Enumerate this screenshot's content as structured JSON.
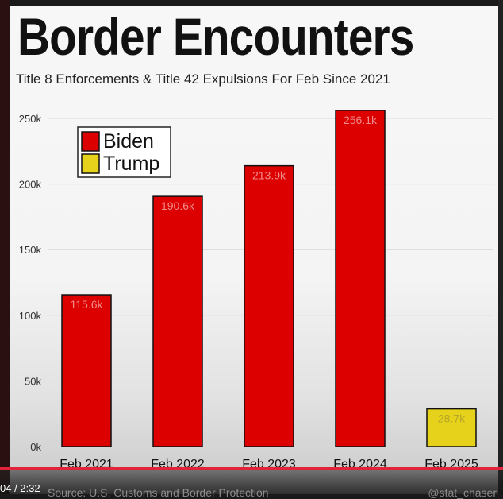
{
  "player": {
    "time": "04 / 2:32",
    "source": "Source: U.S. Customs and Border Protection",
    "handle": "@stat_chaser"
  },
  "chart_data": {
    "type": "bar",
    "title": "Border Encounters",
    "subtitle": "Title 8 Enforcements & Title 42 Expulsions For Feb Since 2021",
    "categories": [
      "Feb 2021",
      "Feb 2022",
      "Feb 2023",
      "Feb 2024",
      "Feb 2025"
    ],
    "values": [
      115.6,
      190.6,
      213.9,
      256.1,
      28.7
    ],
    "value_labels": [
      "115.6k",
      "190.6k",
      "213.9k",
      "256.1k",
      "28.7k"
    ],
    "bar_groups": [
      "Biden",
      "Biden",
      "Biden",
      "Biden",
      "Trump"
    ],
    "legend": [
      {
        "name": "Biden",
        "color": "#dd0000"
      },
      {
        "name": "Trump",
        "color": "#e6d21a"
      }
    ],
    "legend_position": "top-left",
    "ylim": [
      0,
      250
    ],
    "yticks": [
      0,
      50,
      100,
      150,
      200,
      250
    ],
    "ytick_labels": [
      "0k",
      "50k",
      "100k",
      "150k",
      "200k",
      "250k"
    ],
    "grid": true,
    "colors": {
      "bar_outline": "#111111",
      "value_label_biden": "#f08a8a",
      "value_label_trump": "#b5a628"
    }
  }
}
